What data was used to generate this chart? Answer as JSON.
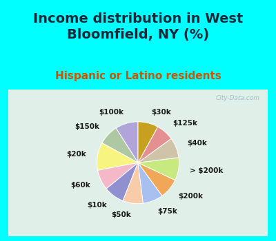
{
  "title": "Income distribution in West\nBloomfield, NY (%)",
  "subtitle": "Hispanic or Latino residents",
  "bg_cyan": "#00FFFF",
  "bg_chart": "#e0f0e8",
  "watermark": "City-Data.com",
  "labels": [
    "$100k",
    "$150k",
    "$20k",
    "$60k",
    "$10k",
    "$50k",
    "$75k",
    "$200k",
    "> $200k",
    "$40k",
    "$125k",
    "$30k"
  ],
  "values": [
    9,
    8,
    11,
    8,
    8,
    8,
    8,
    8,
    9,
    8,
    7,
    8
  ],
  "colors": [
    "#b0a4d8",
    "#aec8a4",
    "#f8f480",
    "#f4b8c8",
    "#9090d0",
    "#f8cca8",
    "#a8c0f0",
    "#f0a858",
    "#c8e880",
    "#d0c4a8",
    "#e49090",
    "#c8a020"
  ],
  "startangle": 90,
  "label_distance": 1.28,
  "title_fontsize": 14,
  "subtitle_fontsize": 11,
  "title_color": "#1a2a3a",
  "subtitle_color": "#cc5500",
  "label_fontsize": 7.5
}
